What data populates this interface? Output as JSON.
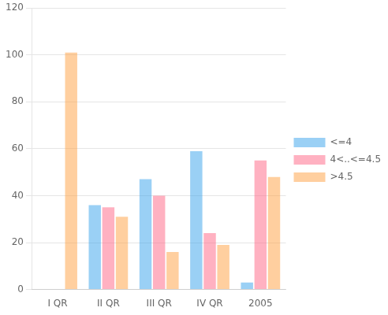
{
  "chart_data": {
    "type": "bar",
    "categories": [
      "I QR",
      "II QR",
      "III QR",
      "IV QR",
      "2005"
    ],
    "series": [
      {
        "name": "<=4",
        "values": [
          0,
          36,
          47,
          59,
          3
        ]
      },
      {
        "name": "4<..<=4.5",
        "values": [
          0,
          35,
          40,
          24,
          55
        ]
      },
      {
        "name": ">4.5",
        "values": [
          101,
          31,
          16,
          19,
          48
        ]
      }
    ],
    "ylim": [
      0,
      120
    ],
    "yticks": [
      0,
      20,
      40,
      60,
      80,
      100,
      120
    ],
    "grid": true,
    "legend": "right"
  }
}
